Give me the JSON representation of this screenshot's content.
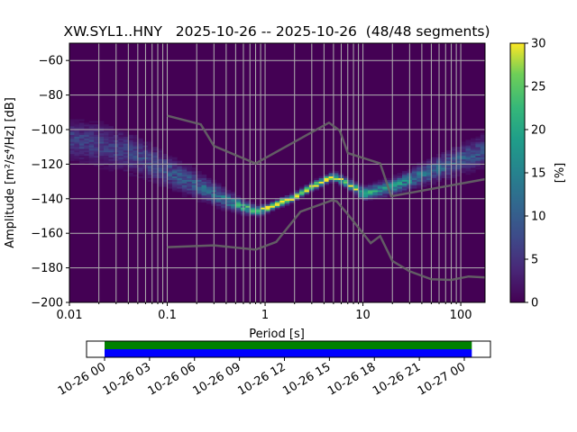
{
  "chart_data": {
    "type": "heatmap",
    "title": "XW.SYL1..HNY   2025-10-26 -- 2025-10-26  (48/48 segments)",
    "xlabel": "Period [s]",
    "ylabel": "Amplitude [m²/s⁴/Hz] [dB]",
    "xscale": "log",
    "xlim": [
      0.01,
      177
    ],
    "ylim": [
      -200,
      -50
    ],
    "xticks": [
      0.01,
      0.1,
      1,
      10,
      100
    ],
    "xtick_labels": [
      "0.01",
      "0.1",
      "1",
      "10",
      "100"
    ],
    "yticks": [
      -60,
      -80,
      -100,
      -120,
      -140,
      -160,
      -180,
      -200
    ],
    "ytick_labels": [
      "−60",
      "−80",
      "−100",
      "−120",
      "−140",
      "−160",
      "−180",
      "−200"
    ],
    "grid": true,
    "colorbar": {
      "label": "[%]",
      "range": [
        0,
        30
      ],
      "ticks": [
        0,
        5,
        10,
        15,
        20,
        25,
        30
      ],
      "tick_labels": [
        "0",
        "5",
        "10",
        "15",
        "20",
        "25",
        "30"
      ],
      "colormap": "viridis"
    },
    "pdf_mode": {
      "columns": [
        "period_s",
        "mode_db",
        "spread_db"
      ],
      "points": [
        [
          0.01,
          -106,
          6
        ],
        [
          0.02,
          -108,
          7
        ],
        [
          0.03,
          -111,
          6.5
        ],
        [
          0.05,
          -115,
          6
        ],
        [
          0.1,
          -124,
          5
        ],
        [
          0.2,
          -132,
          4
        ],
        [
          0.3,
          -137,
          3.5
        ],
        [
          0.5,
          -143,
          2.5
        ],
        [
          0.8,
          -147,
          1.5
        ],
        [
          1,
          -146,
          1.3
        ],
        [
          2,
          -139,
          1.2
        ],
        [
          3,
          -133,
          1.2
        ],
        [
          5,
          -127,
          1.3
        ],
        [
          7,
          -131,
          1.5
        ],
        [
          10,
          -137,
          2
        ],
        [
          20,
          -133,
          2.5
        ],
        [
          50,
          -124,
          3.5
        ],
        [
          100,
          -117,
          4.5
        ],
        [
          177,
          -112,
          5
        ]
      ]
    },
    "noise_models": [
      {
        "name": "NHNM",
        "color": "#666666",
        "points": [
          [
            0.1,
            -92
          ],
          [
            0.22,
            -97
          ],
          [
            0.3,
            -109.5
          ],
          [
            0.8,
            -119.6
          ],
          [
            4.5,
            -96
          ],
          [
            5.8,
            -100.6
          ],
          [
            7,
            -113.6
          ],
          [
            15,
            -119.6
          ],
          [
            19.5,
            -138.6
          ],
          [
            177,
            -128.7
          ]
        ]
      },
      {
        "name": "NLNM",
        "color": "#666666",
        "points": [
          [
            0.1,
            -168
          ],
          [
            0.3,
            -167
          ],
          [
            0.8,
            -169.5
          ],
          [
            1.3,
            -165
          ],
          [
            2.3,
            -147.5
          ],
          [
            4.8,
            -141
          ],
          [
            5.4,
            -141.5
          ],
          [
            7,
            -149
          ],
          [
            12,
            -165.7
          ],
          [
            15,
            -161.6
          ],
          [
            20,
            -176
          ],
          [
            30,
            -182
          ],
          [
            50,
            -186.6
          ],
          [
            80,
            -187
          ],
          [
            120,
            -185
          ],
          [
            177,
            -185.5
          ]
        ]
      }
    ],
    "timeline": {
      "tick_labels": [
        "10-26 00",
        "10-26 03",
        "10-26 06",
        "10-26 09",
        "10-26 12",
        "10-26 15",
        "10-26 18",
        "10-26 21",
        "10-27 00"
      ],
      "coverage_color": "#008000",
      "used_color": "#0000ff",
      "coverage_start_hour": 0,
      "coverage_end_hour": 24.5
    }
  }
}
